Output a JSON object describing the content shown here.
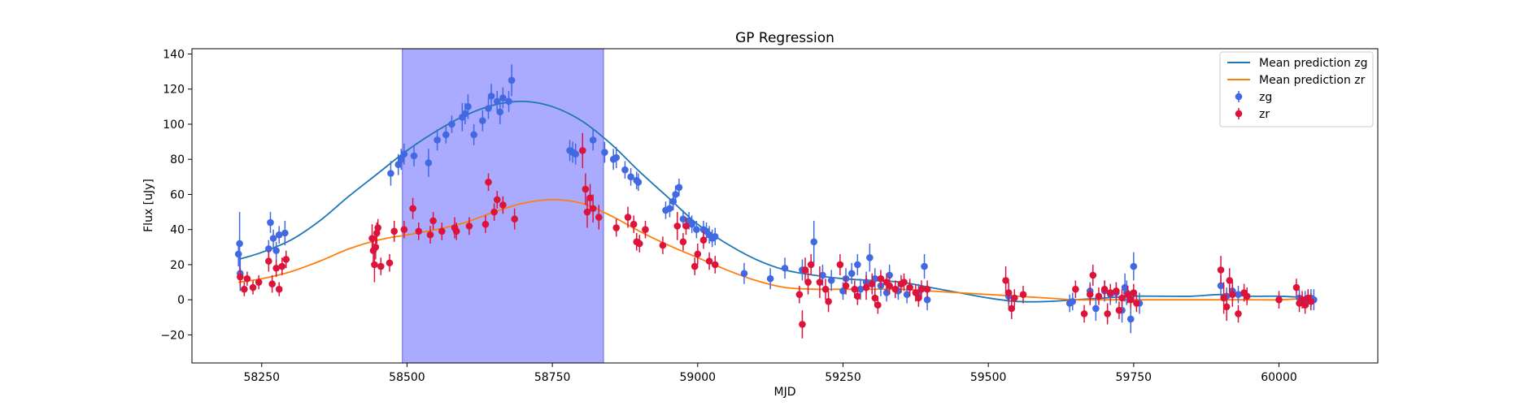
{
  "chart_data": {
    "type": "scatter",
    "title": "GP Regression",
    "xlabel": "MJD",
    "ylabel": "Flux [uJy]",
    "xlim": [
      58130,
      60170
    ],
    "ylim": [
      -36,
      143
    ],
    "xticks": [
      58250,
      58500,
      58750,
      59000,
      59250,
      59500,
      59750,
      60000
    ],
    "yticks": [
      -20,
      0,
      20,
      40,
      60,
      80,
      100,
      120,
      140
    ],
    "grid": false,
    "legend_position": "top-right",
    "highlight_span": {
      "x0": 58492,
      "x1": 58838,
      "color": "#aaaaff"
    },
    "lines": [
      {
        "name": "Mean prediction zg",
        "color": "#1f77b4",
        "x": [
          58210,
          58250,
          58300,
          58350,
          58400,
          58450,
          58500,
          58550,
          58600,
          58650,
          58700,
          58750,
          58800,
          58850,
          58900,
          58950,
          59000,
          59050,
          59100,
          59150,
          59200,
          59250,
          59300,
          59350,
          59400,
          59450,
          59500,
          59550,
          59600,
          59650,
          59700,
          59750,
          59800,
          59850,
          59900,
          59950,
          60000,
          60060
        ],
        "y": [
          23,
          27,
          34,
          45,
          59,
          72,
          85,
          96,
          105,
          111,
          113,
          110,
          102,
          89,
          73,
          58,
          43,
          32,
          23,
          17,
          14,
          12,
          11,
          10,
          7,
          4,
          1,
          -1,
          -1,
          0,
          1,
          2,
          2,
          2,
          3,
          2,
          2,
          1
        ]
      },
      {
        "name": "Mean prediction zr",
        "color": "#ff7f0e",
        "x": [
          58210,
          58250,
          58300,
          58350,
          58400,
          58450,
          58500,
          58550,
          58600,
          58650,
          58700,
          58750,
          58800,
          58850,
          58900,
          58950,
          59000,
          59050,
          59100,
          59150,
          59200,
          59250,
          59300,
          59350,
          59400,
          59450,
          59500,
          59550,
          59600,
          59650,
          59700,
          59750,
          59800,
          59850,
          59900,
          59950,
          60000,
          60060
        ],
        "y": [
          10,
          12,
          16,
          22,
          29,
          34,
          37,
          40,
          44,
          50,
          55,
          57,
          55,
          48,
          39,
          31,
          24,
          17,
          11,
          7,
          6,
          6,
          6,
          6,
          5,
          4,
          3,
          2,
          1,
          0,
          0,
          0,
          0,
          0,
          0,
          0,
          0,
          1
        ]
      }
    ],
    "series": [
      {
        "name": "zg",
        "color": "#4169e1",
        "x": [
          58210,
          58213,
          58212,
          58262,
          58265,
          58270,
          58275,
          58280,
          58290,
          58472,
          58485,
          58490,
          58495,
          58512,
          58537,
          58552,
          58567,
          58577,
          58595,
          58600,
          58605,
          58615,
          58630,
          58640,
          58645,
          58655,
          58660,
          58665,
          58675,
          58680,
          58780,
          58785,
          58790,
          58820,
          58840,
          58855,
          58860,
          58875,
          58885,
          58895,
          58898,
          58945,
          58952,
          58958,
          58962,
          58968,
          58975,
          58985,
          58990,
          58998,
          59010,
          59015,
          59020,
          59025,
          59030,
          59080,
          59125,
          59150,
          59180,
          59200,
          59215,
          59230,
          59250,
          59255,
          59265,
          59275,
          59280,
          59290,
          59296,
          59305,
          59315,
          59325,
          59330,
          59345,
          59360,
          59380,
          59390,
          59395,
          59535,
          59640,
          59645,
          59675,
          59685,
          59700,
          59710,
          59720,
          59730,
          59735,
          59738,
          59745,
          59750,
          59760,
          59900,
          59910,
          59920,
          59930,
          60035,
          60045,
          60055,
          60060
        ],
        "y": [
          26,
          15,
          32,
          29,
          44,
          35,
          28,
          37,
          38,
          72,
          77,
          80,
          83,
          82,
          78,
          91,
          94,
          100,
          104,
          106,
          110,
          94,
          102,
          109,
          116,
          113,
          107,
          115,
          113,
          125,
          85,
          84,
          83,
          91,
          84,
          80,
          81,
          74,
          70,
          68,
          67,
          51,
          52,
          56,
          60,
          64,
          46,
          45,
          43,
          40,
          40,
          39,
          37,
          35,
          36,
          15,
          12,
          18,
          17,
          33,
          14,
          11,
          5,
          12,
          15,
          20,
          6,
          10,
          24,
          12,
          8,
          4,
          14,
          5,
          3,
          4,
          19,
          0,
          2,
          -2,
          -1,
          5,
          -5,
          5,
          3,
          4,
          -6,
          7,
          4,
          -11,
          19,
          -2,
          8,
          2,
          5,
          3,
          1,
          0,
          1,
          0
        ],
        "yerr": [
          7,
          10,
          18,
          5,
          6,
          5,
          5,
          5,
          7,
          7,
          6,
          6,
          6,
          6,
          8,
          6,
          5,
          5,
          8,
          6,
          7,
          6,
          6,
          6,
          7,
          6,
          7,
          6,
          6,
          9,
          6,
          6,
          6,
          6,
          6,
          6,
          6,
          5,
          5,
          5,
          5,
          5,
          5,
          5,
          5,
          5,
          5,
          5,
          5,
          5,
          5,
          5,
          5,
          5,
          5,
          6,
          6,
          6,
          6,
          12,
          6,
          6,
          5,
          6,
          6,
          6,
          6,
          6,
          8,
          6,
          6,
          5,
          6,
          5,
          5,
          5,
          7,
          6,
          6,
          5,
          5,
          5,
          7,
          6,
          6,
          6,
          7,
          8,
          7,
          8,
          8,
          6,
          6,
          5,
          6,
          5,
          5,
          5,
          5,
          6
        ]
      },
      {
        "name": "zr",
        "color": "#dc143c",
        "x": [
          58213,
          58220,
          58225,
          58235,
          58245,
          58262,
          58268,
          58275,
          58280,
          58285,
          58292,
          58440,
          58442,
          58444,
          58446,
          58448,
          58450,
          58455,
          58470,
          58478,
          58495,
          58510,
          58520,
          58540,
          58545,
          58560,
          58582,
          58585,
          58607,
          58635,
          58640,
          58650,
          58655,
          58665,
          58685,
          58802,
          58807,
          58810,
          58815,
          58820,
          58830,
          58860,
          58880,
          58890,
          58895,
          58900,
          58910,
          58940,
          58965,
          58975,
          58980,
          58995,
          59000,
          59010,
          59020,
          59030,
          59175,
          59180,
          59185,
          59190,
          59195,
          59210,
          59220,
          59225,
          59245,
          59255,
          59270,
          59275,
          59290,
          59300,
          59305,
          59310,
          59315,
          59325,
          59330,
          59340,
          59350,
          59355,
          59365,
          59375,
          59380,
          59385,
          59395,
          59530,
          59535,
          59540,
          59545,
          59560,
          59650,
          59665,
          59675,
          59680,
          59690,
          59700,
          59705,
          59710,
          59720,
          59725,
          59730,
          59740,
          59745,
          59750,
          59755,
          59900,
          59905,
          59910,
          59915,
          59920,
          59930,
          59940,
          59945,
          60000,
          60030,
          60035,
          60040,
          60045,
          60050,
          60055
        ],
        "y": [
          13,
          6,
          12,
          7,
          10,
          22,
          9,
          18,
          6,
          19,
          23,
          35,
          28,
          20,
          30,
          38,
          41,
          19,
          21,
          39,
          40,
          52,
          39,
          37,
          45,
          39,
          41,
          39,
          42,
          43,
          67,
          50,
          57,
          54,
          46,
          85,
          63,
          50,
          58,
          52,
          47,
          41,
          47,
          43,
          33,
          32,
          40,
          31,
          42,
          33,
          42,
          19,
          26,
          34,
          22,
          20,
          3,
          -14,
          17,
          10,
          20,
          10,
          6,
          -1,
          20,
          8,
          6,
          2,
          7,
          9,
          1,
          -3,
          12,
          10,
          8,
          6,
          9,
          10,
          7,
          4,
          1,
          6,
          6,
          11,
          4,
          -5,
          1,
          3,
          6,
          -8,
          3,
          14,
          2,
          6,
          -8,
          4,
          5,
          -6,
          1,
          3,
          0,
          4,
          -2,
          17,
          1,
          -4,
          11,
          3,
          -8,
          4,
          2,
          0,
          7,
          -2,
          0,
          -3,
          1,
          -1
        ],
        "yerr": [
          5,
          4,
          4,
          4,
          4,
          6,
          5,
          5,
          4,
          5,
          5,
          8,
          8,
          10,
          7,
          6,
          5,
          5,
          5,
          6,
          5,
          6,
          5,
          5,
          5,
          5,
          6,
          5,
          5,
          5,
          5,
          5,
          5,
          5,
          6,
          10,
          9,
          9,
          8,
          8,
          7,
          5,
          6,
          5,
          5,
          5,
          5,
          5,
          8,
          5,
          5,
          5,
          6,
          5,
          5,
          5,
          5,
          8,
          7,
          7,
          6,
          9,
          6,
          6,
          6,
          5,
          5,
          5,
          7,
          6,
          5,
          5,
          5,
          5,
          5,
          5,
          5,
          5,
          5,
          5,
          5,
          5,
          5,
          8,
          6,
          6,
          5,
          5,
          5,
          5,
          6,
          6,
          5,
          5,
          6,
          5,
          5,
          5,
          5,
          5,
          5,
          5,
          5,
          8,
          9,
          8,
          7,
          7,
          5,
          5,
          5,
          5,
          5,
          5,
          5,
          5,
          5,
          5
        ]
      }
    ],
    "legend": [
      {
        "label": "Mean prediction zg",
        "kind": "line",
        "color": "#1f77b4"
      },
      {
        "label": "Mean prediction zr",
        "kind": "line",
        "color": "#ff7f0e"
      },
      {
        "label": "zg",
        "kind": "errorbar",
        "color": "#4169e1"
      },
      {
        "label": "zr",
        "kind": "errorbar",
        "color": "#dc143c"
      }
    ]
  }
}
